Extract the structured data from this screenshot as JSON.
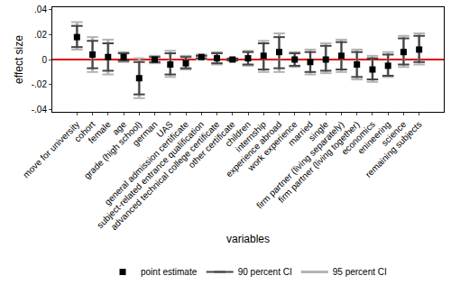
{
  "chart_data": {
    "type": "coefficient",
    "xlabel": "variables",
    "ylabel": "effect size",
    "categories": [
      "move for university",
      "cohort",
      "female",
      "age",
      "grade (high school)",
      "german",
      "UAS",
      "general admission certificate",
      "subject-related entrance qualification",
      "advanced technical college certificate",
      "other certificate",
      "children",
      "internship",
      "experience abroad",
      "work experience",
      "married",
      "single",
      "firm partner (living separately)",
      "firm partner (living together)",
      "economics",
      "enineering",
      "science",
      "remaining subjects"
    ],
    "ylim": [
      -0.042,
      0.042
    ],
    "yticks": [
      {
        "value": -0.04,
        "label": "-.04"
      },
      {
        "value": -0.02,
        "label": "-.02"
      },
      0,
      {
        "value": 0.02,
        "label": ".02"
      },
      {
        "value": 0.04,
        "label": ".04"
      }
    ],
    "grid": false,
    "legend": "bottom",
    "series": [
      {
        "name": "95 percent CI",
        "type": "interval",
        "color": "#b4b4b4",
        "lower": [
          0.008,
          -0.01,
          -0.012,
          -0.002,
          -0.031,
          -0.003,
          -0.014,
          -0.008,
          0.0,
          -0.004,
          -0.001,
          -0.005,
          -0.01,
          -0.01,
          -0.006,
          -0.012,
          -0.011,
          -0.01,
          -0.016,
          -0.018,
          -0.014,
          -0.006,
          -0.004
        ],
        "upper": [
          0.03,
          0.018,
          0.016,
          0.006,
          0.001,
          0.003,
          0.007,
          0.003,
          0.004,
          0.006,
          0.001,
          0.007,
          0.015,
          0.021,
          0.006,
          0.008,
          0.013,
          0.016,
          0.008,
          0.003,
          0.006,
          0.019,
          0.021
        ]
      },
      {
        "name": "90 percent CI",
        "type": "interval",
        "color": "#444444",
        "lower": [
          0.01,
          -0.007,
          -0.009,
          -0.001,
          -0.028,
          -0.002,
          -0.012,
          -0.007,
          0.001,
          -0.003,
          -0.0007,
          -0.004,
          -0.008,
          -0.007,
          -0.005,
          -0.01,
          -0.009,
          -0.008,
          -0.014,
          -0.016,
          -0.013,
          -0.004,
          -0.002
        ],
        "upper": [
          0.027,
          0.015,
          0.013,
          0.005,
          -0.002,
          0.002,
          0.005,
          0.002,
          0.003,
          0.005,
          0.0007,
          0.006,
          0.013,
          0.018,
          0.005,
          0.006,
          0.011,
          0.014,
          0.006,
          0.001,
          0.004,
          0.017,
          0.019
        ]
      },
      {
        "name": "point estimate",
        "type": "point",
        "color": "#000000",
        "marker": "square",
        "values": [
          0.018,
          0.004,
          0.002,
          0.002,
          -0.015,
          0.0,
          -0.004,
          -0.003,
          0.002,
          0.001,
          0.0,
          0.001,
          0.003,
          0.006,
          0.0,
          -0.002,
          0.0,
          0.003,
          -0.004,
          -0.008,
          -0.005,
          0.006,
          0.008
        ]
      }
    ]
  }
}
